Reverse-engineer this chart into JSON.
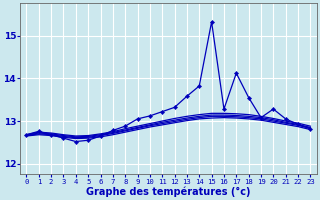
{
  "xlabel": "Graphe des températures (°c)",
  "background_color": "#cce8ee",
  "grid_color": "#ffffff",
  "line_color": "#0000bb",
  "xlim": [
    -0.5,
    23.5
  ],
  "ylim": [
    11.75,
    15.75
  ],
  "yticks": [
    12,
    13,
    14,
    15
  ],
  "xticks": [
    0,
    1,
    2,
    3,
    4,
    5,
    6,
    7,
    8,
    9,
    10,
    11,
    12,
    13,
    14,
    15,
    16,
    17,
    18,
    19,
    20,
    21,
    22,
    23
  ],
  "series": {
    "main": {
      "x": [
        0,
        1,
        2,
        3,
        4,
        5,
        6,
        7,
        8,
        9,
        10,
        11,
        12,
        13,
        14,
        15,
        16,
        17,
        18,
        19,
        20,
        21,
        22,
        23
      ],
      "y": [
        12.68,
        12.76,
        12.68,
        12.6,
        12.52,
        12.55,
        12.65,
        12.78,
        12.88,
        13.05,
        13.12,
        13.22,
        13.32,
        13.58,
        13.82,
        15.32,
        13.28,
        14.12,
        13.55,
        13.08,
        13.28,
        13.05,
        12.92,
        12.82
      ]
    },
    "smooth1": {
      "x": [
        0,
        1,
        2,
        3,
        4,
        5,
        6,
        7,
        8,
        9,
        10,
        11,
        12,
        13,
        14,
        15,
        16,
        17,
        18,
        19,
        20,
        21,
        22,
        23
      ],
      "y": [
        12.68,
        12.74,
        12.72,
        12.68,
        12.65,
        12.66,
        12.7,
        12.75,
        12.82,
        12.88,
        12.94,
        13.0,
        13.06,
        13.11,
        13.15,
        13.18,
        13.18,
        13.17,
        13.15,
        13.11,
        13.06,
        13.0,
        12.95,
        12.88
      ]
    },
    "smooth2": {
      "x": [
        0,
        1,
        2,
        3,
        4,
        5,
        6,
        7,
        8,
        9,
        10,
        11,
        12,
        13,
        14,
        15,
        16,
        17,
        18,
        19,
        20,
        21,
        22,
        23
      ],
      "y": [
        12.67,
        12.72,
        12.7,
        12.66,
        12.63,
        12.64,
        12.68,
        12.73,
        12.79,
        12.85,
        12.91,
        12.97,
        13.02,
        13.07,
        13.11,
        13.14,
        13.14,
        13.13,
        13.11,
        13.08,
        13.03,
        12.97,
        12.92,
        12.85
      ]
    },
    "smooth3": {
      "x": [
        0,
        1,
        2,
        3,
        4,
        5,
        6,
        7,
        8,
        9,
        10,
        11,
        12,
        13,
        14,
        15,
        16,
        17,
        18,
        19,
        20,
        21,
        22,
        23
      ],
      "y": [
        12.66,
        12.7,
        12.68,
        12.64,
        12.61,
        12.62,
        12.66,
        12.71,
        12.77,
        12.83,
        12.89,
        12.94,
        12.99,
        13.04,
        13.08,
        13.11,
        13.11,
        13.1,
        13.08,
        13.05,
        13.0,
        12.95,
        12.9,
        12.83
      ]
    },
    "smooth4": {
      "x": [
        0,
        1,
        2,
        3,
        4,
        5,
        6,
        7,
        8,
        9,
        10,
        11,
        12,
        13,
        14,
        15,
        16,
        17,
        18,
        19,
        20,
        21,
        22,
        23
      ],
      "y": [
        12.65,
        12.68,
        12.66,
        12.62,
        12.59,
        12.6,
        12.63,
        12.68,
        12.74,
        12.8,
        12.86,
        12.91,
        12.96,
        13.01,
        13.05,
        13.07,
        13.08,
        13.07,
        13.05,
        13.02,
        12.97,
        12.92,
        12.87,
        12.8
      ]
    }
  }
}
